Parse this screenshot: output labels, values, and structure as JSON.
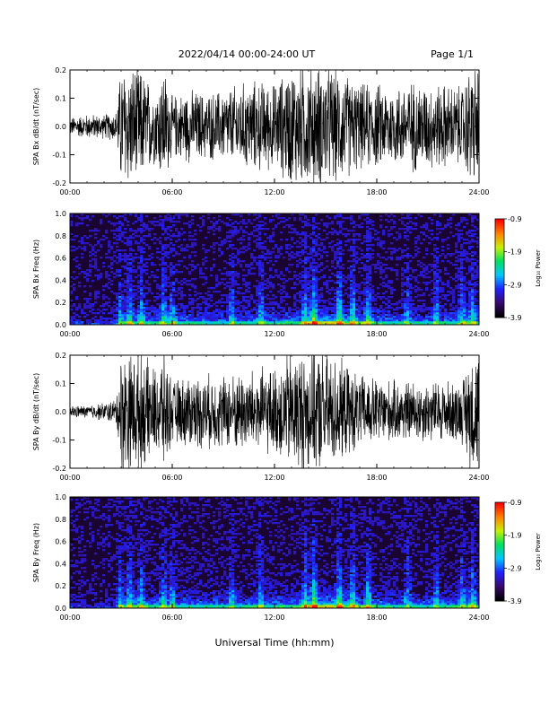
{
  "header": {
    "title": "2022/04/14  00:00-24:00 UT",
    "page": "Page 1/1"
  },
  "footer": {
    "xlabel": "Universal Time (hh:mm)"
  },
  "colors": {
    "trace": "#000000",
    "spectrogram_background": "#1a0530",
    "colormap": [
      "#000000",
      "#3a0a6e",
      "#2020ff",
      "#00c8ff",
      "#00e060",
      "#c8f000",
      "#ff8000",
      "#ff0000"
    ]
  },
  "chart_data": [
    {
      "type": "line",
      "panel": "waveform",
      "ylabel": "SPA Bx dB/dt (nT/sec)",
      "xlim": [
        0,
        24
      ],
      "ylim": [
        -0.2,
        0.2
      ],
      "xticks": [
        "00:00",
        "06:00",
        "12:00",
        "18:00",
        "24:00"
      ],
      "yticks": [
        "-0.2",
        "-0.1",
        "0.0",
        "0.1",
        "0.2"
      ],
      "x_hours": [
        0,
        1,
        2,
        2.7,
        3.0,
        4.0,
        5.0,
        5.5,
        6.0,
        7.0,
        8.0,
        9.0,
        10.0,
        11.0,
        12.0,
        13.0,
        14.0,
        15.0,
        16.0,
        17.0,
        18.0,
        19.0,
        20.0,
        21.0,
        22.0,
        23.0,
        23.5,
        24.0
      ],
      "amplitude": [
        0.03,
        0.04,
        0.04,
        0.05,
        0.2,
        0.2,
        0.12,
        0.2,
        0.1,
        0.12,
        0.11,
        0.12,
        0.14,
        0.15,
        0.14,
        0.2,
        0.2,
        0.2,
        0.18,
        0.14,
        0.14,
        0.13,
        0.15,
        0.14,
        0.14,
        0.13,
        0.2,
        0.2
      ]
    },
    {
      "type": "heatmap",
      "panel": "spectrogram",
      "ylabel": "SPA Bx Freq (Hz)",
      "colorbar_label": "Log₁₀ Power",
      "colorbar_ticks": [
        "-0.9",
        "-1.9",
        "-2.9",
        "-3.9"
      ],
      "clim": [
        -3.9,
        -0.9
      ],
      "xlim": [
        0,
        24
      ],
      "ylim": [
        0,
        1.0
      ],
      "xticks": [
        "00:00",
        "06:00",
        "12:00",
        "18:00",
        "24:00"
      ],
      "yticks": [
        "0.0",
        "0.2",
        "0.4",
        "0.6",
        "0.8",
        "1.0"
      ],
      "bursts_hours": [
        2.9,
        3.5,
        4.2,
        5.5,
        6.0,
        9.5,
        11.2,
        13.8,
        14.3,
        15.8,
        16.6,
        17.5,
        19.8,
        21.5,
        23.0,
        23.6
      ],
      "peak_band_hz": [
        0.0,
        0.08
      ]
    },
    {
      "type": "line",
      "panel": "waveform",
      "ylabel": "SPA By dB/dt (nT/sec)",
      "xlim": [
        0,
        24
      ],
      "ylim": [
        -0.2,
        0.2
      ],
      "xticks": [
        "00:00",
        "06:00",
        "12:00",
        "18:00",
        "24:00"
      ],
      "yticks": [
        "-0.2",
        "-0.1",
        "0.0",
        "0.1",
        "0.2"
      ],
      "x_hours": [
        0,
        1,
        2,
        2.7,
        3.0,
        4.0,
        5.0,
        5.5,
        6.0,
        7.0,
        8.0,
        9.0,
        10.0,
        11.0,
        12.0,
        13.0,
        14.0,
        15.0,
        16.0,
        17.0,
        18.0,
        19.0,
        20.0,
        21.0,
        22.0,
        23.0,
        23.5,
        24.0
      ],
      "amplitude": [
        0.02,
        0.02,
        0.03,
        0.04,
        0.2,
        0.2,
        0.14,
        0.2,
        0.1,
        0.12,
        0.12,
        0.12,
        0.13,
        0.14,
        0.14,
        0.2,
        0.2,
        0.2,
        0.16,
        0.12,
        0.11,
        0.1,
        0.1,
        0.1,
        0.1,
        0.1,
        0.2,
        0.2
      ]
    },
    {
      "type": "heatmap",
      "panel": "spectrogram",
      "ylabel": "SPA By Freq (Hz)",
      "colorbar_label": "Log₁₀ Power",
      "colorbar_ticks": [
        "-0.9",
        "-1.9",
        "-2.9",
        "-3.9"
      ],
      "clim": [
        -3.9,
        -0.9
      ],
      "xlim": [
        0,
        24
      ],
      "ylim": [
        0,
        1.0
      ],
      "xticks": [
        "00:00",
        "06:00",
        "12:00",
        "18:00",
        "24:00"
      ],
      "yticks": [
        "0.0",
        "0.2",
        "0.4",
        "0.6",
        "0.8",
        "1.0"
      ],
      "bursts_hours": [
        2.9,
        3.5,
        4.2,
        5.5,
        6.0,
        9.5,
        11.2,
        13.8,
        14.3,
        15.8,
        16.6,
        17.5,
        19.8,
        21.5,
        23.0,
        23.6
      ],
      "peak_band_hz": [
        0.0,
        0.1
      ]
    }
  ]
}
